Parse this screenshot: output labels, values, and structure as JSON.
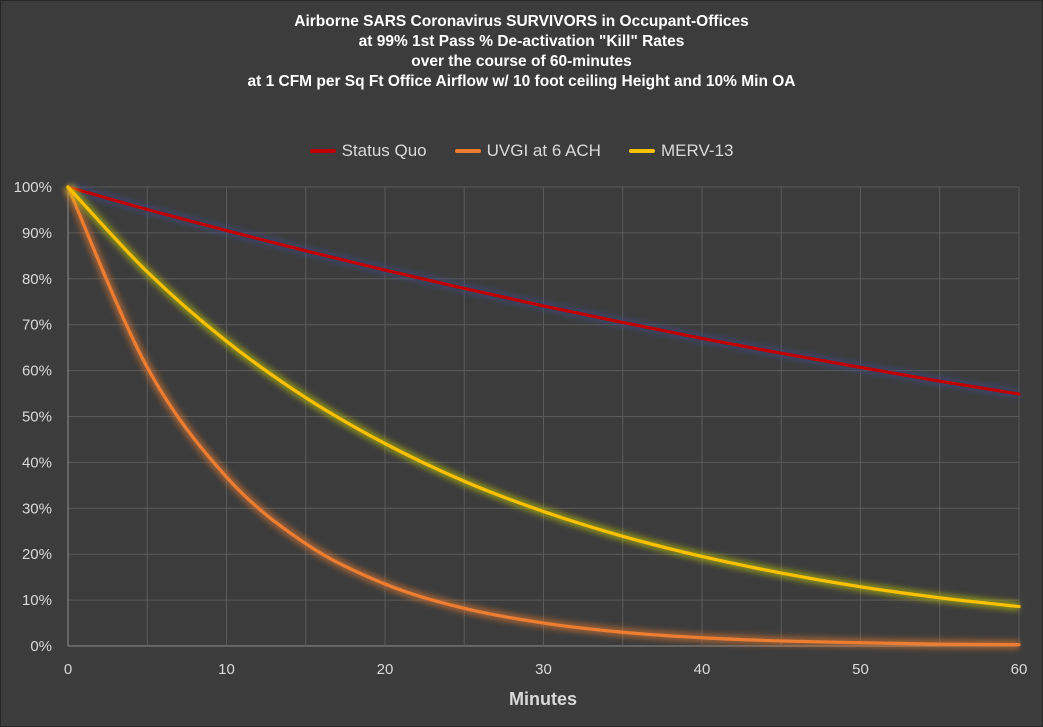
{
  "chart_data": {
    "type": "line",
    "title_lines": [
      "Airborne SARS Coronavirus SURVIVORS in Occupant-Offices",
      "at 99% 1st Pass % De-activation \"Kill\" Rates",
      "over the course of 60-minutes",
      "at 1 CFM per Sq Ft Office Airflow w/ 10 foot ceiling Height and 10% Min OA"
    ],
    "xlabel": "Minutes",
    "ylabel": "",
    "xlim": [
      0,
      60
    ],
    "ylim": [
      0,
      1
    ],
    "x_ticks": [
      0,
      10,
      20,
      30,
      40,
      50,
      60
    ],
    "y_ticks": [
      "0%",
      "10%",
      "20%",
      "30%",
      "40%",
      "50%",
      "60%",
      "70%",
      "80%",
      "90%",
      "100%"
    ],
    "grid": true,
    "legend_position": "top",
    "x": [
      0,
      5,
      10,
      15,
      20,
      25,
      30,
      35,
      40,
      45,
      50,
      55,
      60
    ],
    "series": [
      {
        "name": "Status Quo",
        "color": "#c00000",
        "glow": "#3a4a8a",
        "values": [
          1.0,
          0.951,
          0.905,
          0.861,
          0.819,
          0.779,
          0.741,
          0.705,
          0.67,
          0.638,
          0.607,
          0.577,
          0.549
        ]
      },
      {
        "name": "UVGI at 6 ACH",
        "color": "#ed7d31",
        "glow": "#ed7d31",
        "values": [
          1.0,
          0.607,
          0.368,
          0.223,
          0.135,
          0.082,
          0.05,
          0.03,
          0.018,
          0.011,
          0.007,
          0.004,
          0.003
        ]
      },
      {
        "name": "MERV-13",
        "color": "#ffc000",
        "glow": "#c8d400",
        "values": [
          1.0,
          0.815,
          0.664,
          0.541,
          0.441,
          0.359,
          0.293,
          0.239,
          0.195,
          0.159,
          0.129,
          0.105,
          0.086
        ]
      }
    ]
  }
}
